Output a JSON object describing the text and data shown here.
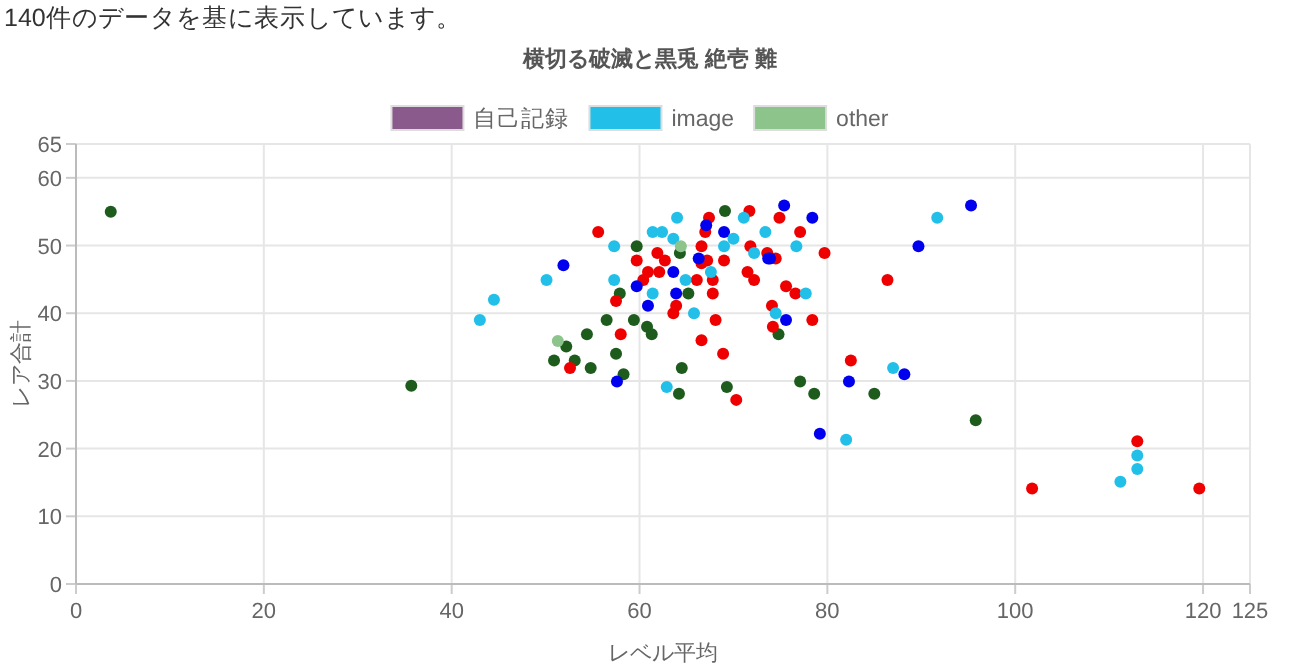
{
  "chart_data": {
    "type": "scatter",
    "title": "横切る破滅と黒兎 絶壱 難",
    "annotations": [
      "140件のデータを基に表示しています。"
    ],
    "xlabel": "レベル平均",
    "ylabel": "レア合計",
    "xlim": [
      0,
      125
    ],
    "xticks": [
      0,
      20,
      40,
      60,
      80,
      100,
      120,
      125
    ],
    "ylim": [
      0,
      65
    ],
    "yticks": [
      0,
      10,
      20,
      30,
      40,
      50,
      60,
      65
    ],
    "grid": true,
    "legend": "top",
    "marker": "circle",
    "series": [
      {
        "name": "自己記録",
        "color": "#8b5a8c"
      },
      {
        "color": "#1e5c1e",
        "x": [
          3.7,
          35.7,
          69.1,
          59.7,
          64.3,
          57.9,
          65.2,
          56.5,
          59.4,
          60.8,
          61.3,
          54.4,
          52.2,
          50.9,
          53.1,
          54.8,
          57.5,
          58.3,
          64.5,
          64.2,
          69.3,
          74.8,
          77.1,
          78.6,
          85,
          95.8
        ],
        "values": [
          55,
          29.3,
          55.1,
          49.9,
          48.9,
          42.9,
          42.9,
          39,
          39,
          38,
          36.9,
          36.9,
          35.1,
          33,
          33,
          31.9,
          34,
          31,
          31.9,
          28.1,
          29.1,
          36.9,
          29.9,
          28.1,
          28.1,
          24.2
        ]
      },
      {
        "color": "#ee0000",
        "x": [
          55.6,
          67.4,
          71.7,
          67,
          66.6,
          71.8,
          73.6,
          61.9,
          62.7,
          59.7,
          69,
          67.2,
          66.6,
          60.9,
          62.1,
          71.5,
          60.4,
          66.1,
          67.8,
          72.2,
          67.8,
          57.5,
          63.9,
          63.6,
          68.1,
          74.2,
          58,
          66.6,
          52.6,
          68.9,
          70.3,
          74.9,
          77.1,
          74.5,
          79.7,
          86.4,
          75.6,
          76.6,
          74.1,
          78.4,
          82.5,
          101.8,
          113,
          119.6
        ],
        "values": [
          52,
          54.1,
          55.1,
          52,
          49.9,
          49.9,
          48.9,
          48.9,
          47.8,
          47.8,
          47.8,
          47.8,
          47.4,
          46.1,
          46.1,
          46.1,
          44.9,
          44.9,
          44.9,
          44.9,
          42.9,
          41.8,
          41.1,
          40,
          39,
          38,
          36.9,
          36,
          31.9,
          34,
          27.2,
          54.1,
          52,
          48.1,
          48.9,
          44.9,
          44,
          42.9,
          41.1,
          39,
          33,
          14.1,
          21.1,
          14.1
        ]
      },
      {
        "color": "#0000ee",
        "x": [
          51.9,
          67.1,
          69,
          66.3,
          63.6,
          59.7,
          63.9,
          60.9,
          57.6,
          73.7,
          75.4,
          78.4,
          73.9,
          75.6,
          89.7,
          95.3,
          82.3,
          88.2,
          79.2
        ],
        "values": [
          47.1,
          53,
          52,
          48.1,
          46.1,
          44,
          42.9,
          41.1,
          29.9,
          48.1,
          55.9,
          54.1,
          48.1,
          39,
          49.9,
          55.9,
          29.9,
          31,
          22.2
        ]
      },
      {
        "name": "image",
        "color": "#22bfe8",
        "x": [
          64,
          61.4,
          62.4,
          63.6,
          57.3,
          69,
          70,
          71.1,
          72.2,
          50.1,
          57.3,
          61.4,
          64.9,
          67.6,
          65.8,
          62.9,
          73.4,
          76.7,
          77.7,
          74.5,
          91.7,
          87,
          43,
          44.5,
          82,
          113,
          113,
          111.2
        ],
        "values": [
          54.1,
          52,
          52,
          51,
          49.9,
          49.9,
          51,
          54.1,
          48.9,
          44.9,
          44.9,
          42.9,
          44.9,
          46.1,
          40,
          29.1,
          52,
          49.9,
          42.9,
          40,
          54.1,
          31.9,
          39,
          42,
          21.3,
          19,
          17,
          15.1
        ]
      },
      {
        "name": "other",
        "color": "#8cc48c",
        "x": [
          51.3,
          64.4
        ],
        "values": [
          35.9,
          49.9
        ]
      }
    ]
  }
}
